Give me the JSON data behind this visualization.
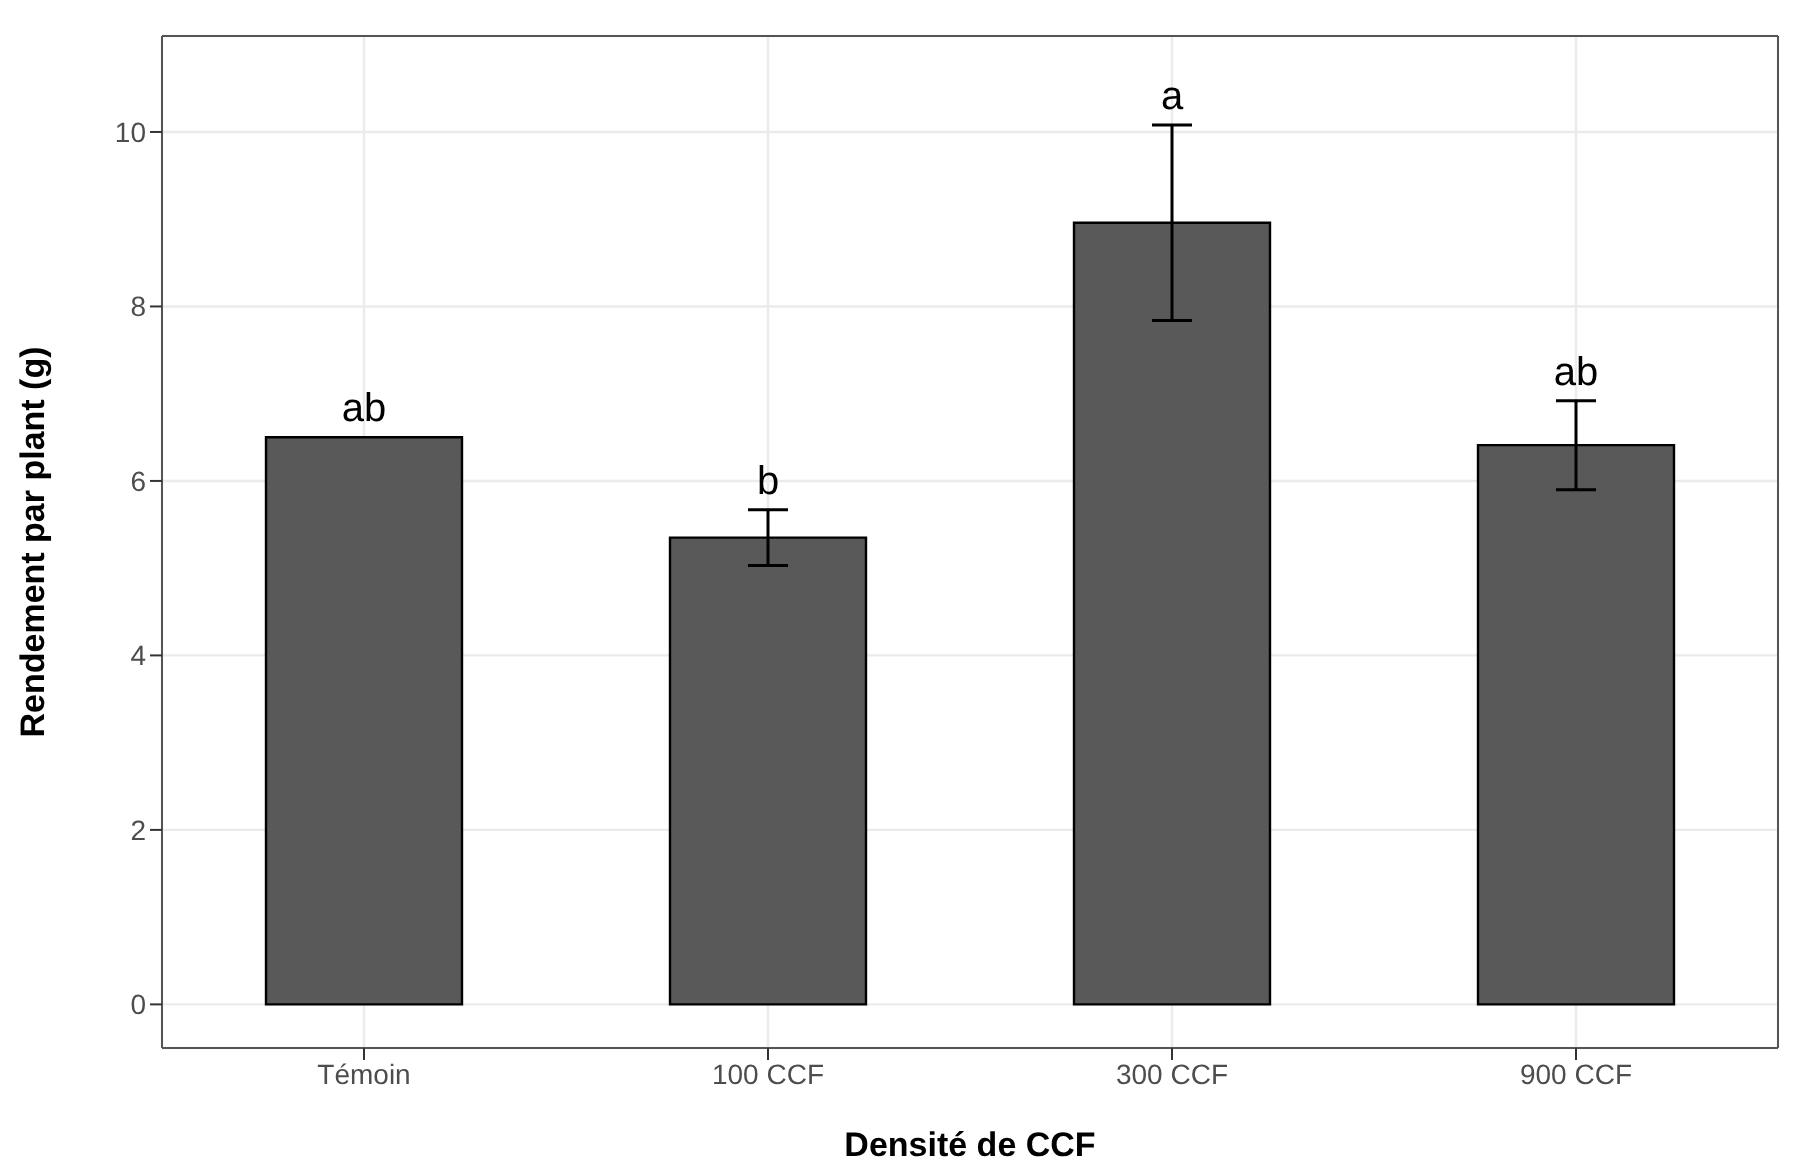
{
  "chart_data": {
    "type": "bar",
    "xlabel": "Densité de CCF",
    "ylabel": "Rendement par plant (g)",
    "categories": [
      "Témoin",
      "100 CCF",
      "300 CCF",
      "900 CCF"
    ],
    "values": [
      6.5,
      5.35,
      8.96,
      6.41
    ],
    "errors": [
      null,
      0.32,
      1.12,
      0.51
    ],
    "color": "#595959",
    "ylim": [
      -0.5,
      11.1
    ],
    "yticks": [
      0,
      2,
      4,
      6,
      8,
      10
    ],
    "grid": true,
    "annotations": [
      {
        "text": "ab",
        "x": "Témoin",
        "y": 6.5
      },
      {
        "text": "b",
        "x": "100 CCF",
        "y": 5.67
      },
      {
        "text": "a",
        "x": "300 CCF",
        "y": 10.08
      },
      {
        "text": "ab",
        "x": "900 CCF",
        "y": 6.92
      }
    ]
  }
}
